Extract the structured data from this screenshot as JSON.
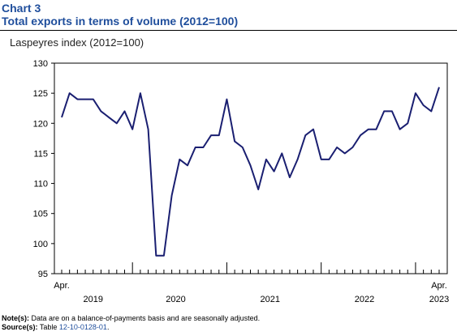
{
  "header": {
    "chart_number": "Chart 3",
    "title": "Total exports in terms of volume (2012=100)"
  },
  "colors": {
    "title": "#1f4e9c",
    "series": "#1a1f71"
  },
  "footnote": {
    "note_label": "Note(s):",
    "note_text": "Data are on a balance-of-payments basis and are seasonally adjusted.",
    "source_label": "Source(s):",
    "source_prefix": "Table ",
    "source_table": "12-10-0128-01",
    "source_suffix": "."
  },
  "chart_data": {
    "type": "line",
    "ylabel": "Laspeyres index (2012=100)",
    "ylim": [
      95,
      130
    ],
    "yticks": [
      95,
      100,
      105,
      110,
      115,
      120,
      125,
      130
    ],
    "grid": false,
    "start_label": "Apr.",
    "end_label": "Apr.",
    "year_labels": [
      "2019",
      "2020",
      "2021",
      "2022",
      "2023"
    ],
    "x": [
      "2019-04",
      "2019-05",
      "2019-06",
      "2019-07",
      "2019-08",
      "2019-09",
      "2019-10",
      "2019-11",
      "2019-12",
      "2020-01",
      "2020-02",
      "2020-03",
      "2020-04",
      "2020-05",
      "2020-06",
      "2020-07",
      "2020-08",
      "2020-09",
      "2020-10",
      "2020-11",
      "2020-12",
      "2021-01",
      "2021-02",
      "2021-03",
      "2021-04",
      "2021-05",
      "2021-06",
      "2021-07",
      "2021-08",
      "2021-09",
      "2021-10",
      "2021-11",
      "2021-12",
      "2022-01",
      "2022-02",
      "2022-03",
      "2022-04",
      "2022-05",
      "2022-06",
      "2022-07",
      "2022-08",
      "2022-09",
      "2022-10",
      "2022-11",
      "2022-12",
      "2023-01",
      "2023-02",
      "2023-03",
      "2023-04"
    ],
    "series": [
      {
        "values": [
          121,
          125,
          124,
          124,
          124,
          122,
          121,
          120,
          122,
          119,
          125,
          119,
          98,
          98,
          108,
          114,
          113,
          116,
          116,
          118,
          118,
          124,
          117,
          116,
          113,
          109,
          114,
          112,
          115,
          111,
          114,
          118,
          119,
          114,
          114,
          116,
          115,
          116,
          118,
          119,
          119,
          122,
          122,
          119,
          120,
          125,
          123,
          122,
          126
        ]
      }
    ]
  }
}
